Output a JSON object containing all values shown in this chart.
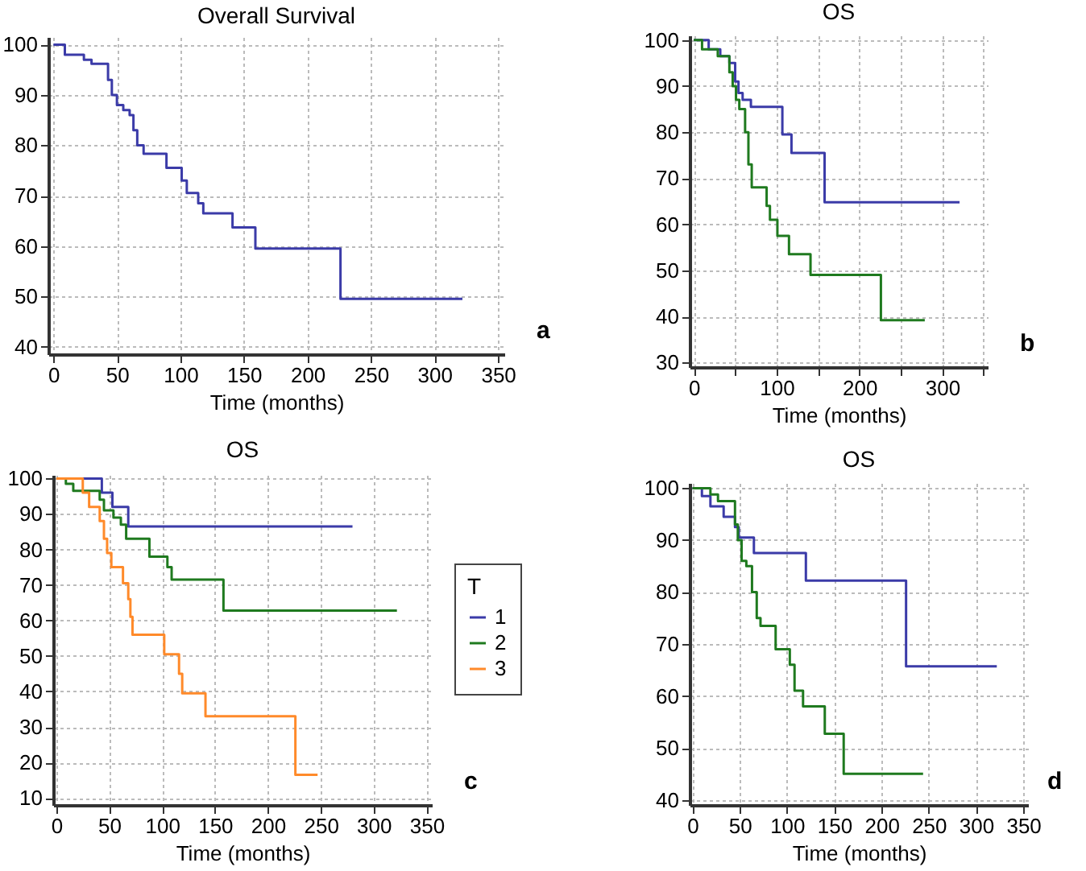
{
  "chart_data": [
    {
      "type": "step",
      "title": "Overall Survival",
      "xlabel": "Time (months)",
      "annotations": [
        "a"
      ],
      "xlim": [
        -4,
        355
      ],
      "xticks": [
        0,
        50,
        100,
        150,
        200,
        250,
        300,
        350
      ],
      "ylim": [
        38.5,
        101.5
      ],
      "yticks": [
        40,
        50,
        60,
        70,
        80,
        90,
        100
      ],
      "grid": true,
      "legend": false,
      "marker": "none",
      "series": [
        {
          "color": "#3b3ba8",
          "x": [
            0,
            9,
            24,
            30,
            43,
            46,
            50,
            55,
            60,
            63,
            66,
            71,
            89,
            101,
            105,
            114,
            118,
            141,
            159,
            226,
            322
          ],
          "values": [
            100,
            98,
            97,
            96.2,
            93,
            90,
            88,
            87,
            86,
            83,
            80,
            78.3,
            75.5,
            73,
            70.5,
            68.5,
            66.5,
            63.7,
            59.5,
            49.5,
            49.5
          ]
        }
      ]
    },
    {
      "type": "step",
      "title": "OS",
      "xlabel": "Time (months)",
      "annotations": [
        "b"
      ],
      "xlim": [
        -5,
        355
      ],
      "xticks": [
        0,
        {
          "value": 50,
          "label": null
        },
        100,
        {
          "value": 150,
          "label": null
        },
        200,
        {
          "value": 250,
          "label": null
        },
        300,
        {
          "value": 350,
          "label": null
        }
      ],
      "ylim": [
        29,
        101
      ],
      "yticks": [
        30,
        40,
        50,
        60,
        70,
        80,
        90,
        100
      ],
      "grid": true,
      "legend": false,
      "marker": "none",
      "series": [
        {
          "color": "#3b3ba8",
          "x": [
            0,
            18,
            32,
            43,
            50,
            54,
            59,
            69,
            107,
            118,
            158,
            321
          ],
          "values": [
            100,
            98,
            96.5,
            95,
            91,
            88.5,
            87,
            85.5,
            79.5,
            75.5,
            64.8,
            64.8
          ]
        },
        {
          "color": "#1f7a1f",
          "x": [
            0,
            10,
            29,
            43,
            47,
            51,
            55,
            62,
            66,
            70,
            88,
            92,
            101,
            115,
            141,
            226,
            279
          ],
          "values": [
            100,
            98,
            96.5,
            93,
            90,
            87,
            85,
            80,
            73,
            68,
            64,
            61,
            57.5,
            53.5,
            49,
            39.2,
            39.2
          ]
        }
      ]
    },
    {
      "type": "step",
      "title": "OS",
      "xlabel": "Time (months)",
      "legend_title": "T",
      "annotations": [
        "c"
      ],
      "xlim": [
        -3,
        355
      ],
      "xticks": [
        0,
        50,
        100,
        150,
        200,
        250,
        300,
        350
      ],
      "ylim": [
        8,
        101
      ],
      "yticks": [
        10,
        20,
        30,
        40,
        50,
        60,
        70,
        80,
        90,
        100
      ],
      "grid": true,
      "legend": "right",
      "marker": "none",
      "series": [
        {
          "name": "1",
          "color": "#3b3ba8",
          "x": [
            0,
            43,
            53,
            68,
            280
          ],
          "values": [
            100,
            96,
            92,
            86.5,
            86.5
          ]
        },
        {
          "name": "2",
          "color": "#1f7a1f",
          "x": [
            0,
            9,
            16,
            41,
            45,
            54,
            61,
            66,
            88,
            105,
            109,
            158,
            322
          ],
          "values": [
            100,
            98.5,
            96.5,
            94,
            91,
            89,
            87,
            83,
            78,
            75,
            71.5,
            62.8,
            62.8
          ]
        },
        {
          "name": "3",
          "color": "#ff8a2a",
          "x": [
            0,
            25,
            31,
            41,
            45,
            48,
            52,
            63,
            68,
            70,
            72,
            102,
            116,
            119,
            141,
            226,
            247
          ],
          "values": [
            100,
            96,
            92,
            88,
            83,
            79,
            75,
            70.5,
            66,
            61,
            56,
            50.5,
            45,
            39.5,
            33,
            16.5,
            16.5
          ]
        }
      ]
    },
    {
      "type": "step",
      "title": "OS",
      "xlabel": "Time (months)",
      "annotations": [
        "d"
      ],
      "xlim": [
        -3,
        355
      ],
      "xticks": [
        0,
        50,
        100,
        150,
        200,
        250,
        300,
        350
      ],
      "ylim": [
        39,
        101
      ],
      "yticks": [
        40,
        50,
        60,
        70,
        80,
        90,
        100
      ],
      "grid": true,
      "legend": false,
      "marker": "none",
      "series": [
        {
          "color": "#3b3ba8",
          "x": [
            0,
            10,
            19,
            33,
            45,
            49,
            65,
            120,
            226,
            322
          ],
          "values": [
            100,
            98.5,
            96.5,
            94.5,
            92.5,
            90.5,
            87.5,
            82.2,
            65.7,
            65.7
          ]
        },
        {
          "color": "#1f7a1f",
          "x": [
            0,
            19,
            27,
            45,
            48,
            52,
            57,
            63,
            68,
            72,
            88,
            103,
            108,
            117,
            140,
            160,
            244
          ],
          "values": [
            100,
            98.8,
            97.5,
            93,
            90,
            86,
            85,
            80,
            75,
            73.5,
            69,
            66,
            61,
            58,
            52.7,
            45,
            45
          ]
        }
      ]
    }
  ]
}
